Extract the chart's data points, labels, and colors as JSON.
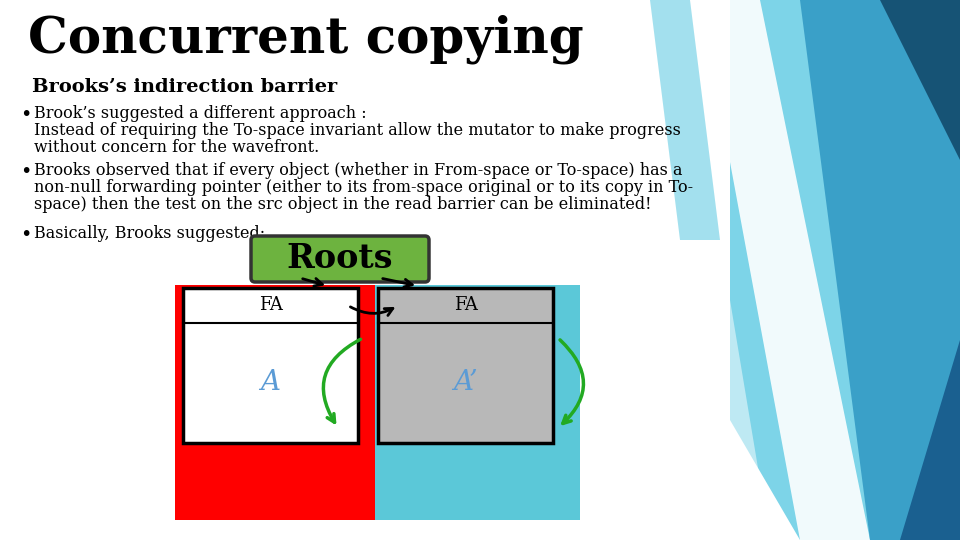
{
  "title": "Concurrent copying",
  "subtitle": "Brooks’s indirection barrier",
  "bullet1_line1": "Brook’s suggested a different approach :",
  "bullet1_line2": "  Instead of requiring the To-space invariant allow the mutator to make progress",
  "bullet1_line3": "  without concern for the wavefront.",
  "bullet2_line1": "Brooks observed that if every object (whether in From-space or To-space) has a",
  "bullet2_line2": "non-null forwarding pointer (either to its from-space original or to its copy in To-",
  "bullet2_line3": "space) then the test on the src object in the read barrier can be eliminated!",
  "bullet3": "Basically, Brooks suggested:",
  "roots_label": "Roots",
  "FA_label": "FA",
  "A_label": "A",
  "Aprime_label": "A’",
  "bg_color": "#ffffff",
  "title_color": "#000000",
  "subtitle_color": "#000000",
  "bullet_color": "#000000",
  "roots_box_color": "#6db33f",
  "roots_text_color": "#000000",
  "from_space_bg": "#ff0000",
  "to_space_bg": "#5bc8d8",
  "left_obj_bg": "#ffffff",
  "right_obj_bg": "#b8b8b8",
  "fa_text_color": "#000000",
  "a_text_color": "#5b9bd5",
  "arrow_black_color": "#000000",
  "arrow_green_color": "#22aa22",
  "blue_light": "#7dd4e8",
  "blue_mid": "#3aa0c8",
  "blue_dark": "#1a6090",
  "blue_darker": "#0d4060"
}
